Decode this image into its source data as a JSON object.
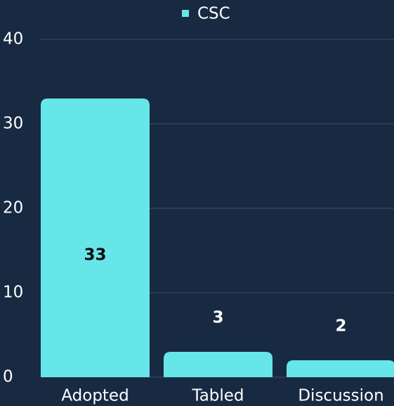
{
  "chart_data": {
    "type": "bar",
    "categories": [
      "Adopted",
      "Tabled",
      "Discussion"
    ],
    "series": [
      {
        "name": "CSC",
        "color": "#67e6ea",
        "values": [
          33,
          3,
          2
        ]
      }
    ],
    "ylim": [
      0,
      40
    ],
    "yticks": [
      0,
      10,
      20,
      30,
      40
    ],
    "grid": true,
    "legend": "top"
  }
}
